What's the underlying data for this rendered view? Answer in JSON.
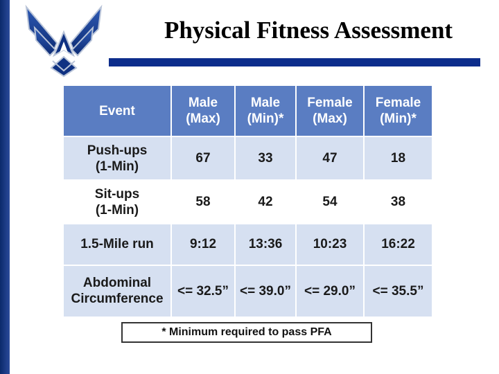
{
  "slide": {
    "title": "Physical Fitness Assessment",
    "accent_color": "#0d2d8c"
  },
  "logo": {
    "icon": "air-force-wings-logo-icon"
  },
  "table": {
    "headers": [
      "Event",
      "Male\n(Max)",
      "Male\n(Min)*",
      "Female\n(Max)",
      "Female\n(Min)*"
    ],
    "rows": [
      [
        "Push-ups\n(1-Min)",
        "67",
        "33",
        "47",
        "18"
      ],
      [
        "Sit-ups\n(1-Min)",
        "58",
        "42",
        "54",
        "38"
      ],
      [
        "1.5-Mile run",
        "9:12",
        "13:36",
        "10:23",
        "16:22"
      ],
      [
        "Abdominal\nCircumference",
        "<= 32.5”",
        "<= 39.0”",
        "<= 29.0”",
        "<= 35.5”"
      ]
    ],
    "header_color": "#5a7dc2",
    "stripe_color": "#d6e0f1"
  },
  "footnote": "* Minimum required to pass PFA"
}
